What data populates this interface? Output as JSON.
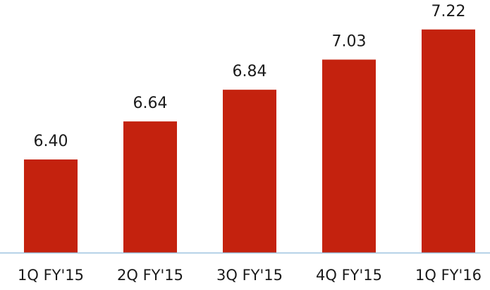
{
  "chart_data": {
    "type": "bar",
    "categories": [
      "1Q FY'15",
      "2Q FY'15",
      "3Q FY'15",
      "4Q FY'15",
      "1Q FY'16"
    ],
    "values": [
      6.4,
      6.64,
      6.84,
      7.03,
      7.22
    ],
    "value_labels": [
      "6.40",
      "6.64",
      "6.84",
      "7.03",
      "7.22"
    ],
    "title": "",
    "xlabel": "",
    "ylabel": "",
    "grid": false,
    "legend": "none",
    "colors": {
      "bar": "#c4220e",
      "axis": "#9cc3e0"
    }
  }
}
